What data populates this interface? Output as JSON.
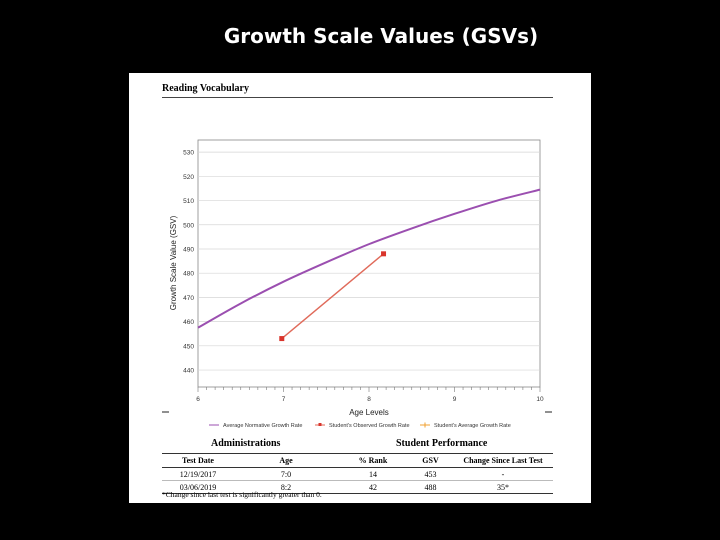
{
  "slide_title": "Growth Scale Values (GSVs)",
  "report": {
    "section_title": "Reading Vocabulary",
    "footnote": "*Change since last test is significantly greater than 0."
  },
  "chart_data": {
    "type": "line",
    "xlabel": "Age Levels",
    "ylabel": "Growth Scale Value (GSV)",
    "xlim": [
      6,
      10
    ],
    "ylim": [
      433,
      535
    ],
    "x_ticks": [
      6,
      7,
      8,
      9,
      10
    ],
    "y_ticks": [
      440,
      450,
      460,
      470,
      480,
      490,
      500,
      510,
      520,
      530
    ],
    "grid": true,
    "legend_position": "bottom",
    "series": [
      {
        "name": "Average Normative Growth Rate",
        "color": "#9b4fb0",
        "x": [
          6,
          6.5,
          7,
          7.5,
          8,
          8.5,
          9,
          9.5,
          10
        ],
        "y": [
          457.5,
          467.5,
          476.5,
          484.5,
          492,
          498.5,
          504.5,
          510,
          514.5
        ]
      },
      {
        "name": "Student's Observed Growth Rate",
        "color": "#e06a5a",
        "marker_color": "#d9342b",
        "x": [
          6.98,
          8.17
        ],
        "y": [
          453,
          488
        ]
      },
      {
        "name": "Student's Average Growth Rate",
        "color": "#f0a030",
        "x": [],
        "y": []
      }
    ]
  },
  "table": {
    "group_left": "Administrations",
    "group_right": "Student Performance",
    "columns": [
      "Test Date",
      "Age",
      "% Rank",
      "GSV",
      "Change Since Last Test"
    ],
    "rows": [
      [
        "12/19/2017",
        "7:0",
        "14",
        "453",
        "-"
      ],
      [
        "03/06/2019",
        "8:2",
        "42",
        "488",
        "35*"
      ]
    ]
  }
}
